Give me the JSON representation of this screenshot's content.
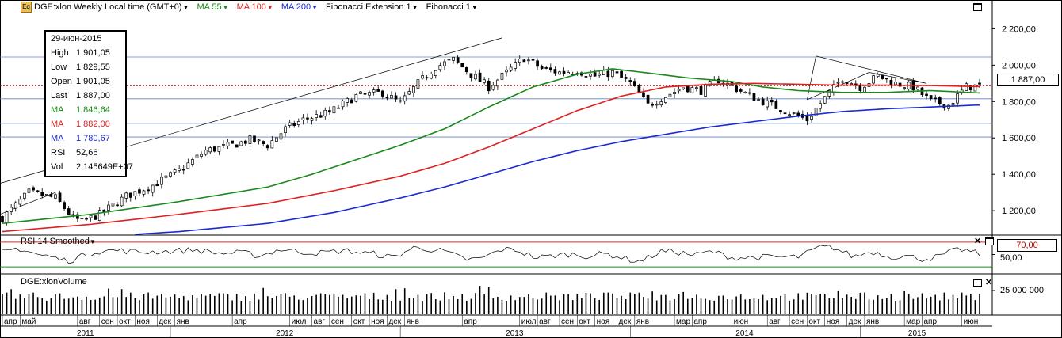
{
  "toolbar": {
    "app_icon": "Eq",
    "symbol": "DGE:xlon Weekly Local time (GMT+0)",
    "ma55": "MA 55",
    "ma100": "MA 100",
    "ma200": "MA 200",
    "fib_ext": "Fibonacci Extension 1",
    "fib": "Fibonacci 1"
  },
  "colors": {
    "ma55": "#1a8a1a",
    "ma100": "#e02020",
    "ma200": "#1a2ad0",
    "grid": "#6080c0",
    "price_line": "#c00000"
  },
  "info": {
    "date": "29-июн-2015",
    "high_label": "High",
    "high": "1 901,05",
    "low_label": "Low",
    "low": "1 829,55",
    "open_label": "Open",
    "open": "1 901,05",
    "last_label": "Last",
    "last": "1 887,00",
    "ma55_label": "MA",
    "ma55": "1 846,64",
    "ma100_label": "MA",
    "ma100": "1 882,00",
    "ma200_label": "MA",
    "ma200": "1 780,67",
    "rsi_label": "RSI",
    "rsi": "52,66",
    "vol_label": "Vol",
    "vol": "2,145649E+07"
  },
  "price_tag": "1 887,00",
  "rsi_panel": {
    "title": "RSI 14 Smoothed",
    "level_tag": "70,00",
    "tick": "50,00"
  },
  "volume_panel": {
    "title": "DGE:xlonVolume",
    "tick": "25 000 000"
  },
  "chart_data": {
    "type": "candlestick",
    "price_axis": {
      "ticks": [
        "1 200,00",
        "1 400,00",
        "1 600,00",
        "1 800,00",
        "2 000,00",
        "2 200,00"
      ],
      "tick_values": [
        1200,
        1400,
        1600,
        1800,
        2000,
        2200
      ],
      "ylim": [
        1070,
        2280
      ]
    },
    "horizontal_levels": [
      2045,
      1887,
      1815,
      1680,
      1605
    ],
    "months": [
      {
        "label": "апр",
        "i": 0
      },
      {
        "label": "май",
        "i": 4
      },
      {
        "label": "авг",
        "i": 17
      },
      {
        "label": "сен",
        "i": 22
      },
      {
        "label": "окт",
        "i": 26
      },
      {
        "label": "ноя",
        "i": 30
      },
      {
        "label": "дек",
        "i": 35
      },
      {
        "label": "янв",
        "i": 39
      },
      {
        "label": "апр",
        "i": 52
      },
      {
        "label": "июл",
        "i": 65
      },
      {
        "label": "авг",
        "i": 70
      },
      {
        "label": "сен",
        "i": 74
      },
      {
        "label": "окт",
        "i": 79
      },
      {
        "label": "ноя",
        "i": 83
      },
      {
        "label": "дек",
        "i": 87
      },
      {
        "label": "янв",
        "i": 91
      },
      {
        "label": "апр",
        "i": 104
      },
      {
        "label": "июл",
        "i": 117
      },
      {
        "label": "авг",
        "i": 121
      },
      {
        "label": "сен",
        "i": 126
      },
      {
        "label": "окт",
        "i": 130
      },
      {
        "label": "ноя",
        "i": 134
      },
      {
        "label": "дек",
        "i": 139
      },
      {
        "label": "янв",
        "i": 143
      },
      {
        "label": "мар",
        "i": 152
      },
      {
        "label": "апр",
        "i": 156
      },
      {
        "label": "июн",
        "i": 165
      },
      {
        "label": "авг",
        "i": 173
      },
      {
        "label": "сен",
        "i": 178
      },
      {
        "label": "окт",
        "i": 182
      },
      {
        "label": "ноя",
        "i": 186
      },
      {
        "label": "дек",
        "i": 191
      },
      {
        "label": "янв",
        "i": 195
      },
      {
        "label": "мар",
        "i": 204
      },
      {
        "label": "апр",
        "i": 208
      },
      {
        "label": "июн",
        "i": 217
      }
    ],
    "years": [
      {
        "label": "2011",
        "i": 19
      },
      {
        "label": "2012",
        "i": 64
      },
      {
        "label": "2013",
        "i": 116
      },
      {
        "label": "2014",
        "i": 168
      },
      {
        "label": "2015",
        "i": 207
      }
    ],
    "year_bounds": [
      38,
      90,
      142,
      194
    ],
    "n_bars": 222,
    "close_keys": [
      [
        0,
        1160
      ],
      [
        6,
        1300
      ],
      [
        12,
        1270
      ],
      [
        16,
        1160
      ],
      [
        18,
        1140
      ],
      [
        22,
        1180
      ],
      [
        28,
        1280
      ],
      [
        34,
        1340
      ],
      [
        40,
        1420
      ],
      [
        46,
        1530
      ],
      [
        52,
        1560
      ],
      [
        56,
        1590
      ],
      [
        60,
        1560
      ],
      [
        64,
        1650
      ],
      [
        68,
        1700
      ],
      [
        74,
        1740
      ],
      [
        80,
        1830
      ],
      [
        86,
        1850
      ],
      [
        90,
        1790
      ],
      [
        94,
        1900
      ],
      [
        98,
        1990
      ],
      [
        102,
        2030
      ],
      [
        106,
        1950
      ],
      [
        110,
        1880
      ],
      [
        114,
        1960
      ],
      [
        118,
        2040
      ],
      [
        122,
        1980
      ],
      [
        126,
        1960
      ],
      [
        130,
        1970
      ],
      [
        134,
        1940
      ],
      [
        138,
        1960
      ],
      [
        142,
        1900
      ],
      [
        146,
        1780
      ],
      [
        150,
        1830
      ],
      [
        154,
        1880
      ],
      [
        158,
        1860
      ],
      [
        162,
        1920
      ],
      [
        166,
        1870
      ],
      [
        170,
        1820
      ],
      [
        174,
        1780
      ],
      [
        178,
        1740
      ],
      [
        182,
        1700
      ],
      [
        186,
        1820
      ],
      [
        190,
        1930
      ],
      [
        194,
        1880
      ],
      [
        198,
        1940
      ],
      [
        202,
        1900
      ],
      [
        206,
        1880
      ],
      [
        210,
        1800
      ],
      [
        214,
        1780
      ],
      [
        218,
        1880
      ],
      [
        221,
        1887
      ]
    ],
    "ma55_keys": [
      [
        0,
        1130
      ],
      [
        20,
        1180
      ],
      [
        40,
        1250
      ],
      [
        60,
        1330
      ],
      [
        70,
        1400
      ],
      [
        80,
        1480
      ],
      [
        90,
        1560
      ],
      [
        100,
        1650
      ],
      [
        110,
        1770
      ],
      [
        120,
        1880
      ],
      [
        130,
        1950
      ],
      [
        138,
        1980
      ],
      [
        145,
        1960
      ],
      [
        155,
        1930
      ],
      [
        165,
        1910
      ],
      [
        172,
        1880
      ],
      [
        180,
        1860
      ],
      [
        190,
        1850
      ],
      [
        200,
        1850
      ],
      [
        210,
        1860
      ],
      [
        221,
        1847
      ]
    ],
    "ma100_keys": [
      [
        0,
        1085
      ],
      [
        20,
        1125
      ],
      [
        40,
        1180
      ],
      [
        60,
        1240
      ],
      [
        75,
        1310
      ],
      [
        90,
        1390
      ],
      [
        100,
        1460
      ],
      [
        110,
        1550
      ],
      [
        120,
        1650
      ],
      [
        130,
        1750
      ],
      [
        140,
        1830
      ],
      [
        150,
        1880
      ],
      [
        160,
        1895
      ],
      [
        170,
        1900
      ],
      [
        180,
        1895
      ],
      [
        190,
        1890
      ],
      [
        200,
        1890
      ],
      [
        210,
        1888
      ],
      [
        221,
        1882
      ]
    ],
    "ma200_keys": [
      [
        30,
        1070
      ],
      [
        40,
        1085
      ],
      [
        60,
        1130
      ],
      [
        75,
        1190
      ],
      [
        90,
        1270
      ],
      [
        100,
        1330
      ],
      [
        110,
        1400
      ],
      [
        120,
        1470
      ],
      [
        130,
        1530
      ],
      [
        140,
        1580
      ],
      [
        150,
        1620
      ],
      [
        160,
        1660
      ],
      [
        170,
        1690
      ],
      [
        180,
        1720
      ],
      [
        190,
        1745
      ],
      [
        200,
        1760
      ],
      [
        210,
        1770
      ],
      [
        221,
        1781
      ]
    ],
    "rsi_series": {
      "name": "RSI 14 Smoothed",
      "last": 52.66,
      "levels": [
        70
      ]
    },
    "volume_last": 21456490
  }
}
